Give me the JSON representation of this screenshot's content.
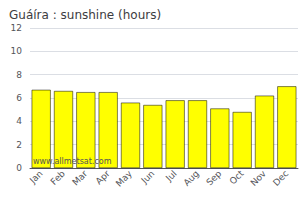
{
  "chart_data": {
    "type": "bar",
    "title": "Guáíra : sunshine (hours)",
    "annotation": "www.allmetsat.com",
    "categories": [
      "Jan",
      "Feb",
      "Mar",
      "Apr",
      "May",
      "Jun",
      "Jul",
      "Aug",
      "Sep",
      "Oct",
      "Nov",
      "Dec"
    ],
    "values": [
      6.7,
      6.6,
      6.5,
      6.5,
      5.6,
      5.4,
      5.8,
      5.8,
      5.1,
      4.8,
      6.2,
      7.0
    ],
    "color": "#ffff00",
    "ylim": [
      0,
      12
    ],
    "yticks": [
      0,
      2,
      4,
      6,
      8,
      10,
      12
    ],
    "grid": true
  }
}
